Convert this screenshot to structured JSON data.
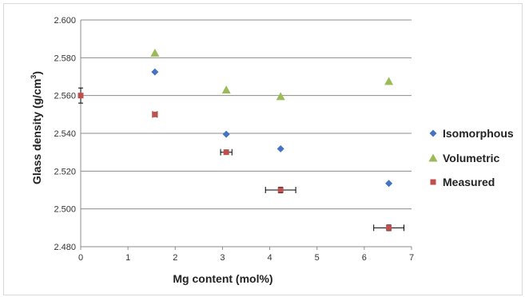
{
  "chart_data": {
    "type": "scatter",
    "title": "",
    "xlabel": "Mg content (mol%)",
    "ylabel": "Glass density (g/cm",
    "ylabel_sup": "3",
    "ylabel_end": ")",
    "xlim": [
      0,
      7
    ],
    "ylim": [
      2.48,
      2.6
    ],
    "x_ticks": [
      "0",
      "1",
      "2",
      "3",
      "4",
      "5",
      "6",
      "7"
    ],
    "y_ticks": [
      "2.480",
      "2.500",
      "2.520",
      "2.540",
      "2.560",
      "2.580",
      "2.600"
    ],
    "grid": "horizontal",
    "legend_position": "right",
    "colors": {
      "Isomorphous": "#4472c4",
      "Volumetric": "#9bbb59",
      "Measured": "#c0504d"
    },
    "series": [
      {
        "name": "Isomorphous",
        "marker": "diamond",
        "x": [
          1.57,
          3.08,
          4.23,
          6.52
        ],
        "y": [
          2.5725,
          2.5395,
          2.5318,
          2.5135
        ]
      },
      {
        "name": "Volumetric",
        "marker": "triangle",
        "x": [
          1.57,
          3.08,
          4.23,
          6.52
        ],
        "y": [
          2.5825,
          2.563,
          2.5595,
          2.5675
        ]
      },
      {
        "name": "Measured",
        "marker": "square",
        "x": [
          0,
          1.57,
          3.08,
          4.23,
          6.52
        ],
        "y": [
          2.56,
          2.55,
          2.53,
          2.51,
          2.49
        ],
        "x_err": [
          0,
          0.05,
          0.12,
          0.32,
          0.32
        ],
        "y_err": [
          0.004,
          0.001,
          0.0012,
          0.0015,
          0.0015
        ]
      }
    ]
  }
}
